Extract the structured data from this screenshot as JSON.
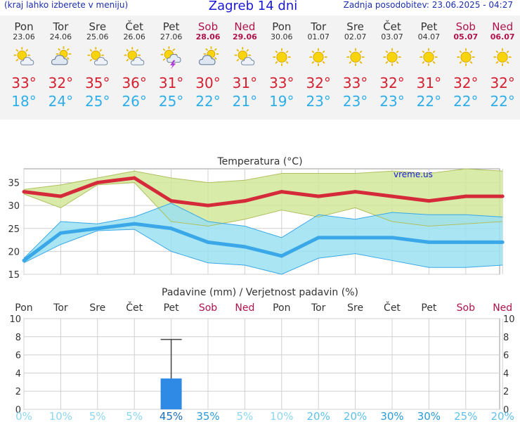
{
  "header": {
    "left_note": "(kraj lahko izberete v meniju)",
    "title": "Zagreb 14 dni",
    "updated": "Zadnja posodobitev: 23.06.2025 - 04:27"
  },
  "days": [
    {
      "name": "Pon",
      "date": "23.06",
      "weekend": false,
      "icon": "sun-cloud-icon",
      "tmax": "33°",
      "tmin": "18°"
    },
    {
      "name": "Tor",
      "date": "24.06",
      "weekend": false,
      "icon": "cloud-sun-icon",
      "tmax": "32°",
      "tmin": "24°"
    },
    {
      "name": "Sre",
      "date": "25.06",
      "weekend": false,
      "icon": "sun-cloud-icon",
      "tmax": "35°",
      "tmin": "25°"
    },
    {
      "name": "Čet",
      "date": "26.06",
      "weekend": false,
      "icon": "sun-cloud-icon",
      "tmax": "36°",
      "tmin": "26°"
    },
    {
      "name": "Pet",
      "date": "27.06",
      "weekend": false,
      "icon": "thunderstorm-icon",
      "tmax": "31°",
      "tmin": "25°"
    },
    {
      "name": "Sob",
      "date": "28.06",
      "weekend": true,
      "icon": "cloud-sun-icon",
      "tmax": "30°",
      "tmin": "22°"
    },
    {
      "name": "Ned",
      "date": "29.06",
      "weekend": true,
      "icon": "sun-cloud-icon",
      "tmax": "31°",
      "tmin": "21°"
    },
    {
      "name": "Pon",
      "date": "30.06",
      "weekend": false,
      "icon": "sun-icon",
      "tmax": "33°",
      "tmin": "19°"
    },
    {
      "name": "Tor",
      "date": "01.07",
      "weekend": false,
      "icon": "sun-icon",
      "tmax": "32°",
      "tmin": "23°"
    },
    {
      "name": "Sre",
      "date": "02.07",
      "weekend": false,
      "icon": "sun-icon",
      "tmax": "33°",
      "tmin": "23°"
    },
    {
      "name": "Čet",
      "date": "03.07",
      "weekend": false,
      "icon": "sun-icon",
      "tmax": "32°",
      "tmin": "23°"
    },
    {
      "name": "Pet",
      "date": "04.07",
      "weekend": false,
      "icon": "sun-icon",
      "tmax": "31°",
      "tmin": "22°"
    },
    {
      "name": "Sob",
      "date": "05.07",
      "weekend": true,
      "icon": "sun-icon",
      "tmax": "32°",
      "tmin": "22°"
    },
    {
      "name": "Ned",
      "date": "06.07",
      "weekend": true,
      "icon": "sun-icon",
      "tmax": "32°",
      "tmin": "22°"
    }
  ],
  "colors": {
    "max_line": "#d42a3a",
    "max_band": "#d2e89a",
    "min_line": "#3aa8e8",
    "min_band": "#9ae0f0",
    "overlap": "#8fd48c",
    "weekend": "#b0124c",
    "bar": "#2f8ae6",
    "prob": "#8ed6f2",
    "grid": "#d0d0d0"
  },
  "chart_data": [
    {
      "type": "line",
      "title": "Temperatura (°C)",
      "watermark": "vreme.us",
      "ylim": [
        15,
        38
      ],
      "yticks": [
        15,
        20,
        25,
        30,
        35
      ],
      "grid": true,
      "series": [
        {
          "values": [
            33,
            32,
            35,
            36,
            31,
            30,
            31,
            33,
            32,
            33,
            32,
            31,
            32,
            32
          ],
          "low": [
            32.5,
            29.5,
            34.5,
            35,
            26.5,
            25.5,
            27,
            29,
            27.5,
            29.5,
            26.5,
            25.5,
            26,
            26.5
          ],
          "high": [
            33.5,
            34.5,
            36,
            37.5,
            36,
            35,
            35.5,
            37,
            37,
            37,
            37.5,
            37,
            38,
            37.5
          ]
        },
        {
          "values": [
            18,
            24,
            25,
            26,
            25,
            22,
            21,
            19,
            23,
            23,
            23,
            22,
            22,
            22
          ],
          "low": [
            17.5,
            21.5,
            24.5,
            24.8,
            20,
            17.5,
            17,
            15,
            18.5,
            19.5,
            18,
            16.5,
            16.5,
            17
          ],
          "high": [
            18.5,
            26.5,
            26,
            27.5,
            30.5,
            26.5,
            25.5,
            23,
            28,
            27,
            28.5,
            28,
            28,
            27.5
          ]
        }
      ]
    },
    {
      "type": "bar",
      "title": "Padavine (mm) / Verjetnost padavin (%)",
      "categories": [
        "Pon",
        "Tor",
        "Sre",
        "Čet",
        "Pet",
        "Sob",
        "Ned",
        "Pon",
        "Tor",
        "Sre",
        "Čet",
        "Pet",
        "Sob",
        "Ned"
      ],
      "weekend": [
        false,
        false,
        false,
        false,
        false,
        true,
        true,
        false,
        false,
        false,
        false,
        false,
        true,
        true
      ],
      "values": [
        0,
        0,
        0,
        0,
        3.4,
        0,
        0,
        0,
        0,
        0,
        0,
        0,
        0,
        0
      ],
      "error_high": [
        null,
        null,
        null,
        null,
        7.7,
        null,
        null,
        null,
        null,
        null,
        null,
        null,
        null,
        null
      ],
      "probability": [
        "0%",
        "10%",
        "5%",
        "5%",
        "45%",
        "35%",
        "5%",
        "10%",
        "20%",
        "20%",
        "30%",
        "30%",
        "25%",
        "20%"
      ],
      "probability_values": [
        0,
        10,
        5,
        5,
        45,
        35,
        5,
        10,
        20,
        20,
        30,
        30,
        25,
        20
      ],
      "ylim": [
        0,
        10
      ],
      "yticks": [
        0,
        2,
        4,
        6,
        8,
        10
      ]
    }
  ]
}
